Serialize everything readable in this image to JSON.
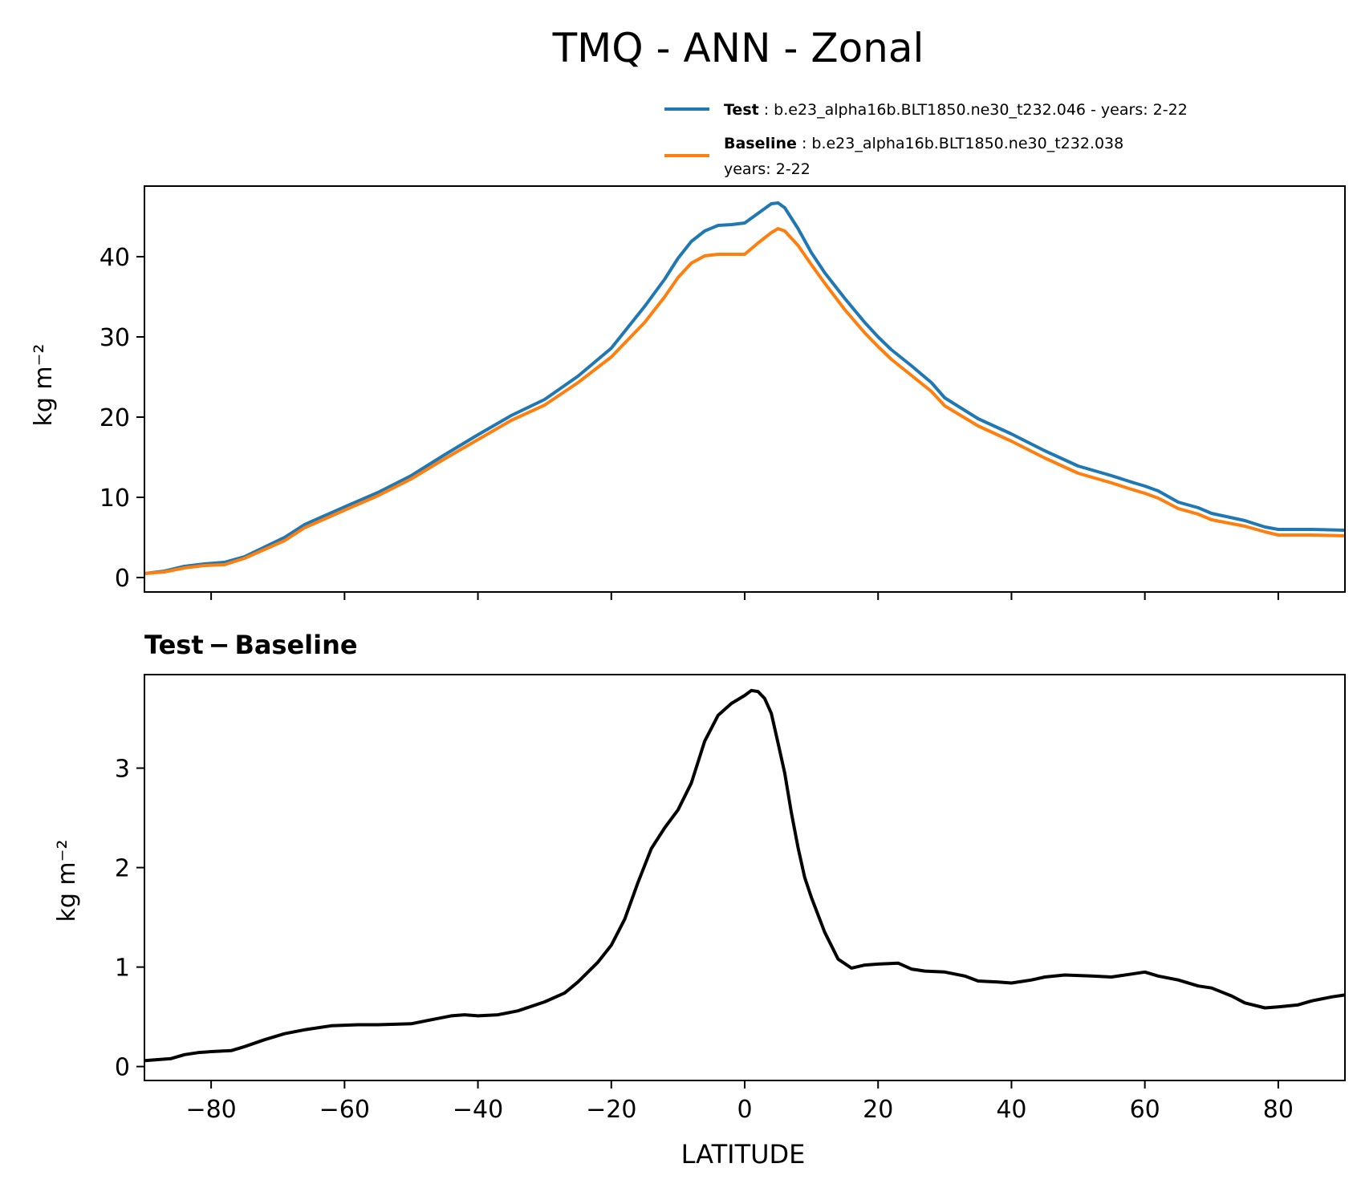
{
  "figure": {
    "title": "TMQ - ANN - Zonal",
    "legend": {
      "test_label": "Test",
      "test_text": ": b.e23_alpha16b.BLT1850.ne30_t232.046 - years: 2-22",
      "baseline_label": "Baseline",
      "baseline_text": ": b.e23_alpha16b.BLT1850.ne30_t232.038",
      "baseline_text2": "years: 2-22"
    },
    "colors": {
      "test": "#1f77b4",
      "baseline": "#ff7f0e",
      "difference": "#000000"
    },
    "diff_title_part1": "Test",
    "diff_title_minus": "−",
    "diff_title_part2": "Baseline"
  },
  "chart_data": [
    {
      "type": "line",
      "title": "TMQ - ANN - Zonal",
      "xlabel": "",
      "ylabel": "kg m⁻²",
      "xlim": [
        -90,
        90
      ],
      "ylim": [
        -1.8,
        48.8
      ],
      "yticks": [
        0,
        10,
        20,
        30,
        40
      ],
      "xticks": [
        -80,
        -60,
        -40,
        -20,
        0,
        20,
        40,
        60,
        80
      ],
      "legend_position": "top-right, above axes",
      "x": [
        -90,
        -87,
        -84,
        -81,
        -78,
        -75,
        -72,
        -69,
        -66,
        -63,
        -60,
        -55,
        -50,
        -45,
        -40,
        -35,
        -30,
        -25,
        -20,
        -15,
        -12,
        -10,
        -8,
        -6,
        -4,
        -2,
        0,
        2,
        4,
        5,
        6,
        8,
        10,
        12,
        15,
        18,
        20,
        22,
        25,
        28,
        30,
        35,
        40,
        45,
        50,
        55,
        58,
        60,
        62,
        65,
        68,
        70,
        75,
        78,
        80,
        85,
        90
      ],
      "series": [
        {
          "name": "Test",
          "values": [
            0.5,
            0.8,
            1.4,
            1.7,
            1.9,
            2.6,
            3.8,
            5.0,
            6.6,
            7.7,
            8.8,
            10.6,
            12.7,
            15.3,
            17.8,
            20.2,
            22.2,
            25.1,
            28.6,
            33.8,
            37.2,
            39.8,
            41.9,
            43.2,
            43.9,
            44.0,
            44.2,
            45.4,
            46.6,
            46.7,
            46.1,
            43.5,
            40.5,
            38.0,
            34.8,
            31.8,
            30.0,
            28.4,
            26.4,
            24.3,
            22.4,
            19.8,
            17.9,
            15.8,
            13.9,
            12.7,
            11.9,
            11.4,
            10.8,
            9.4,
            8.7,
            8.0,
            7.1,
            6.3,
            6.0,
            6.0,
            5.9
          ]
        },
        {
          "name": "Baseline",
          "values": [
            0.5,
            0.7,
            1.2,
            1.5,
            1.6,
            2.4,
            3.5,
            4.6,
            6.2,
            7.3,
            8.4,
            10.2,
            12.3,
            14.8,
            17.2,
            19.6,
            21.5,
            24.3,
            27.5,
            31.8,
            35.0,
            37.4,
            39.2,
            40.1,
            40.3,
            40.3,
            40.3,
            41.7,
            43.0,
            43.5,
            43.2,
            41.4,
            39.0,
            36.7,
            33.4,
            30.5,
            28.8,
            27.2,
            25.2,
            23.2,
            21.4,
            18.9,
            17.0,
            14.9,
            13.0,
            11.8,
            11.0,
            10.5,
            9.9,
            8.6,
            7.9,
            7.2,
            6.4,
            5.7,
            5.3,
            5.3,
            5.2
          ]
        }
      ]
    },
    {
      "type": "line",
      "title": "Test − Baseline",
      "xlabel": "LATITUDE",
      "ylabel": "kg m⁻²",
      "xlim": [
        -90,
        90
      ],
      "ylim": [
        -0.14,
        3.94
      ],
      "yticks": [
        0,
        1,
        2,
        3
      ],
      "xticks": [
        -80,
        -60,
        -40,
        -20,
        0,
        20,
        40,
        60,
        80
      ],
      "x": [
        -90,
        -88,
        -86,
        -84,
        -82,
        -80,
        -77,
        -75,
        -72,
        -69,
        -66,
        -62,
        -58,
        -55,
        -50,
        -47,
        -44,
        -42,
        -40,
        -37,
        -34,
        -30,
        -27,
        -25,
        -22,
        -20,
        -18,
        -16,
        -14,
        -12,
        -10,
        -8,
        -6,
        -4,
        -2,
        0,
        1,
        2,
        3,
        4,
        5,
        6,
        7,
        8,
        9,
        10,
        12,
        14,
        16,
        18,
        20,
        23,
        25,
        27,
        30,
        33,
        35,
        38,
        40,
        43,
        45,
        48,
        52,
        55,
        58,
        60,
        62,
        65,
        68,
        70,
        73,
        75,
        78,
        80,
        83,
        85,
        88,
        90
      ],
      "series": [
        {
          "name": "Test − Baseline",
          "values": [
            0.06,
            0.07,
            0.08,
            0.12,
            0.14,
            0.15,
            0.16,
            0.2,
            0.27,
            0.33,
            0.37,
            0.41,
            0.42,
            0.42,
            0.43,
            0.47,
            0.51,
            0.52,
            0.51,
            0.52,
            0.56,
            0.65,
            0.74,
            0.85,
            1.05,
            1.22,
            1.48,
            1.85,
            2.19,
            2.4,
            2.58,
            2.85,
            3.27,
            3.53,
            3.65,
            3.73,
            3.78,
            3.77,
            3.7,
            3.55,
            3.25,
            2.95,
            2.55,
            2.2,
            1.9,
            1.7,
            1.35,
            1.08,
            0.99,
            1.02,
            1.03,
            1.04,
            0.98,
            0.96,
            0.95,
            0.91,
            0.86,
            0.85,
            0.84,
            0.87,
            0.9,
            0.92,
            0.91,
            0.9,
            0.93,
            0.95,
            0.91,
            0.87,
            0.81,
            0.79,
            0.71,
            0.64,
            0.59,
            0.6,
            0.62,
            0.66,
            0.7,
            0.72
          ]
        }
      ]
    }
  ]
}
